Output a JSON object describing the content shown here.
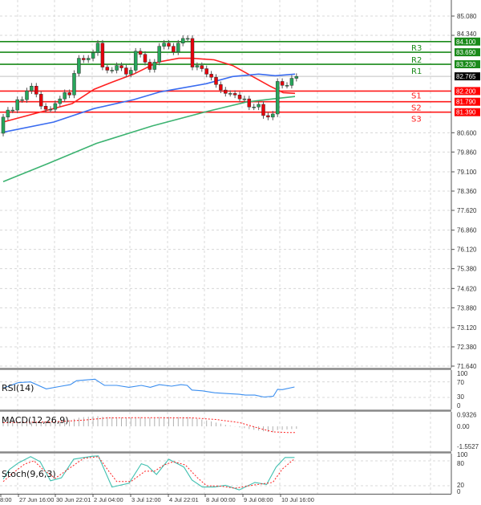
{
  "chart_data": [
    {
      "type": "candlestick",
      "panel": "price",
      "y_ticks": [
        "85.080",
        "84.340",
        "80.600",
        "79.860",
        "79.100",
        "78.360",
        "77.620",
        "76.860",
        "76.120",
        "75.380",
        "74.620",
        "73.880",
        "73.120",
        "72.380",
        "71.640"
      ],
      "ylim": [
        71.64,
        85.08
      ],
      "grid": true,
      "current_price": {
        "label": "82.765",
        "value": 82.765,
        "color": "#000000"
      },
      "levels": [
        {
          "name": "R3",
          "value": 84.1,
          "label": "84.100",
          "color": "#1a8a1a"
        },
        {
          "name": "R2",
          "value": 83.69,
          "label": "83.690",
          "color": "#1a8a1a"
        },
        {
          "name": "R1",
          "value": 83.23,
          "label": "83.230",
          "color": "#1a8a1a"
        },
        {
          "name": "S1",
          "value": 82.2,
          "label": "82.200",
          "color": "#ff1a1a"
        },
        {
          "name": "S2",
          "value": 81.79,
          "label": "81.790",
          "color": "#ff1a1a"
        },
        {
          "name": "S3",
          "value": 81.39,
          "label": "81.390",
          "color": "#ff1a1a"
        }
      ],
      "candles": {
        "open_first": 80.58,
        "close": [
          81.2,
          81.47,
          81.47,
          81.87,
          81.87,
          82.21,
          82.39,
          82.08,
          81.62,
          81.5,
          81.5,
          81.72,
          81.9,
          82.14,
          82.05,
          82.88,
          83.46,
          83.4,
          83.46,
          83.67,
          84.04,
          83.12,
          83.0,
          83.0,
          83.18,
          83.09,
          82.85,
          83.0,
          83.73,
          83.61,
          83.31,
          83.03,
          83.31,
          83.92,
          84.04,
          83.92,
          83.7,
          84.04,
          84.22,
          84.22,
          83.12,
          83.18,
          83.06,
          82.85,
          82.73,
          82.45,
          82.24,
          82.11,
          82.11,
          82.05,
          81.9,
          81.9,
          81.59,
          81.59,
          81.69,
          81.26,
          81.2,
          81.32,
          82.57,
          82.42,
          82.42,
          82.69,
          82.76
        ],
        "up_color": "#26a65b",
        "down_color": "#e8000b"
      },
      "moving_averages": [
        {
          "color": "#ff2020",
          "points": [
            [
              0,
              81.01
            ],
            [
              14.6,
              81.72
            ],
            [
              19.2,
              82.27
            ],
            [
              23,
              82.54
            ],
            [
              27.6,
              82.85
            ],
            [
              32.7,
              83.31
            ],
            [
              37.1,
              83.46
            ],
            [
              40,
              83.46
            ],
            [
              44.6,
              83.4
            ],
            [
              48.5,
              83.18
            ],
            [
              53,
              82.73
            ],
            [
              56.4,
              82.39
            ],
            [
              59.2,
              82.14
            ],
            [
              61.7,
              82.11
            ]
          ]
        },
        {
          "color": "#3a6cf0",
          "points": [
            [
              0,
              80.62
            ],
            [
              10.7,
              81.01
            ],
            [
              19.2,
              81.53
            ],
            [
              27.6,
              81.87
            ],
            [
              33.2,
              82.17
            ],
            [
              42.9,
              82.48
            ],
            [
              48.5,
              82.76
            ],
            [
              54,
              82.85
            ],
            [
              57.5,
              82.79
            ],
            [
              61.7,
              82.85
            ]
          ]
        },
        {
          "color": "#3cb371",
          "points": [
            [
              0,
              78.72
            ],
            [
              9.5,
              79.42
            ],
            [
              19.7,
              80.19
            ],
            [
              31.5,
              80.86
            ],
            [
              42.9,
              81.41
            ],
            [
              51.4,
              81.78
            ],
            [
              57,
              81.9
            ],
            [
              61.7,
              81.99
            ]
          ]
        }
      ],
      "x_ticks": [
        "8:00",
        "27 Jun 16:00",
        "30 Jun 22:01",
        "2 Jul 04:00",
        "3 Jul 12:00",
        "4 Jul 22:01",
        "8 Jul 00:00",
        "9 Jul 08:00",
        "10 Jul 16:00"
      ]
    },
    {
      "type": "line",
      "panel": "rsi",
      "title": "RSI(14)",
      "y_ticks": [
        "100",
        "70",
        "30",
        "0"
      ],
      "ylim": [
        0,
        100
      ],
      "color": "#3a8ef0",
      "points": [
        [
          0,
          54
        ],
        [
          3.2,
          68
        ],
        [
          5.8,
          70
        ],
        [
          9.1,
          52
        ],
        [
          12.3,
          59
        ],
        [
          14.2,
          63
        ],
        [
          15.5,
          73
        ],
        [
          19.4,
          77
        ],
        [
          21.4,
          61
        ],
        [
          24,
          61
        ],
        [
          26.6,
          56
        ],
        [
          29.2,
          61
        ],
        [
          31.1,
          56
        ],
        [
          33,
          63
        ],
        [
          35.6,
          59
        ],
        [
          37.6,
          63
        ],
        [
          38.9,
          61
        ],
        [
          39.9,
          49
        ],
        [
          42.1,
          47
        ],
        [
          44.7,
          42
        ],
        [
          47.3,
          40
        ],
        [
          49.9,
          38
        ],
        [
          51.2,
          36
        ],
        [
          53.2,
          36
        ],
        [
          55.1,
          31
        ],
        [
          57.1,
          33
        ],
        [
          58,
          51
        ],
        [
          59,
          50
        ],
        [
          61.6,
          57
        ]
      ]
    },
    {
      "type": "bar",
      "panel": "macd",
      "title": "MACD(12,26,9)",
      "y_ticks": [
        "0.9326",
        "0.00",
        "-1.5527"
      ],
      "ylim": [
        -1.5527,
        0.9326
      ],
      "histogram_color": "#b0b0b0",
      "signal_color": "#ff2020",
      "histogram": [
        0.35,
        0.36,
        0.38,
        0.4,
        0.4,
        0.4,
        0.38,
        0.36,
        0.35,
        0.35,
        0.36,
        0.38,
        0.4,
        0.42,
        0.5,
        0.6,
        0.7,
        0.75,
        0.78,
        0.8,
        0.82,
        0.78,
        0.76,
        0.75,
        0.74,
        0.72,
        0.72,
        0.7,
        0.74,
        0.74,
        0.72,
        0.7,
        0.72,
        0.75,
        0.76,
        0.76,
        0.74,
        0.75,
        0.76,
        0.76,
        0.7,
        0.62,
        0.55,
        0.48,
        0.4,
        0.3,
        0.22,
        0.12,
        0.05,
        -0.02,
        -0.08,
        -0.15,
        -0.22,
        -0.28,
        -0.34,
        -0.4,
        -0.46,
        -0.48,
        -0.3,
        -0.28,
        -0.25,
        -0.22,
        -0.2
      ],
      "signal": [
        [
          0,
          0.3
        ],
        [
          10,
          0.35
        ],
        [
          17,
          0.5
        ],
        [
          22,
          0.68
        ],
        [
          30,
          0.7
        ],
        [
          40,
          0.68
        ],
        [
          45,
          0.55
        ],
        [
          50,
          0.3
        ],
        [
          54,
          -0.15
        ],
        [
          57,
          -0.45
        ],
        [
          60,
          -0.5
        ],
        [
          62,
          -0.5
        ]
      ]
    },
    {
      "type": "line",
      "panel": "stoch",
      "title": "Stoch(9,6,3)",
      "y_ticks": [
        "100",
        "80",
        "20",
        "0"
      ],
      "ylim": [
        0,
        100
      ],
      "main_color": "#40c0b0",
      "signal_color": "#ff2020",
      "main": [
        [
          0,
          36
        ],
        [
          1.3,
          59
        ],
        [
          3.2,
          75
        ],
        [
          5.8,
          90
        ],
        [
          7.8,
          78
        ],
        [
          10,
          32
        ],
        [
          12.3,
          39
        ],
        [
          14.9,
          84
        ],
        [
          18.8,
          91
        ],
        [
          20.1,
          92
        ],
        [
          23,
          17
        ],
        [
          26.6,
          26
        ],
        [
          29.2,
          73
        ],
        [
          30.5,
          68
        ],
        [
          32.4,
          47
        ],
        [
          35,
          84
        ],
        [
          38.2,
          65
        ],
        [
          39.9,
          34
        ],
        [
          42.1,
          17
        ],
        [
          44.7,
          17
        ],
        [
          47,
          21
        ],
        [
          49.9,
          10
        ],
        [
          53.2,
          28
        ],
        [
          55.7,
          23
        ],
        [
          57.7,
          65
        ],
        [
          59.6,
          88
        ],
        [
          61.6,
          88
        ]
      ],
      "signal": [
        [
          0,
          30
        ],
        [
          2,
          50
        ],
        [
          4.5,
          72
        ],
        [
          6.5,
          80
        ],
        [
          8.5,
          58
        ],
        [
          11,
          38
        ],
        [
          14,
          62
        ],
        [
          17,
          86
        ],
        [
          20.1,
          90
        ],
        [
          22,
          60
        ],
        [
          24,
          30
        ],
        [
          27,
          30
        ],
        [
          30,
          55
        ],
        [
          32,
          55
        ],
        [
          34,
          70
        ],
        [
          36,
          78
        ],
        [
          38.5,
          70
        ],
        [
          41,
          40
        ],
        [
          43,
          20
        ],
        [
          46,
          19
        ],
        [
          49,
          14
        ],
        [
          52,
          20
        ],
        [
          55,
          25
        ],
        [
          57,
          28
        ],
        [
          59,
          60
        ],
        [
          61.6,
          85
        ]
      ]
    }
  ]
}
